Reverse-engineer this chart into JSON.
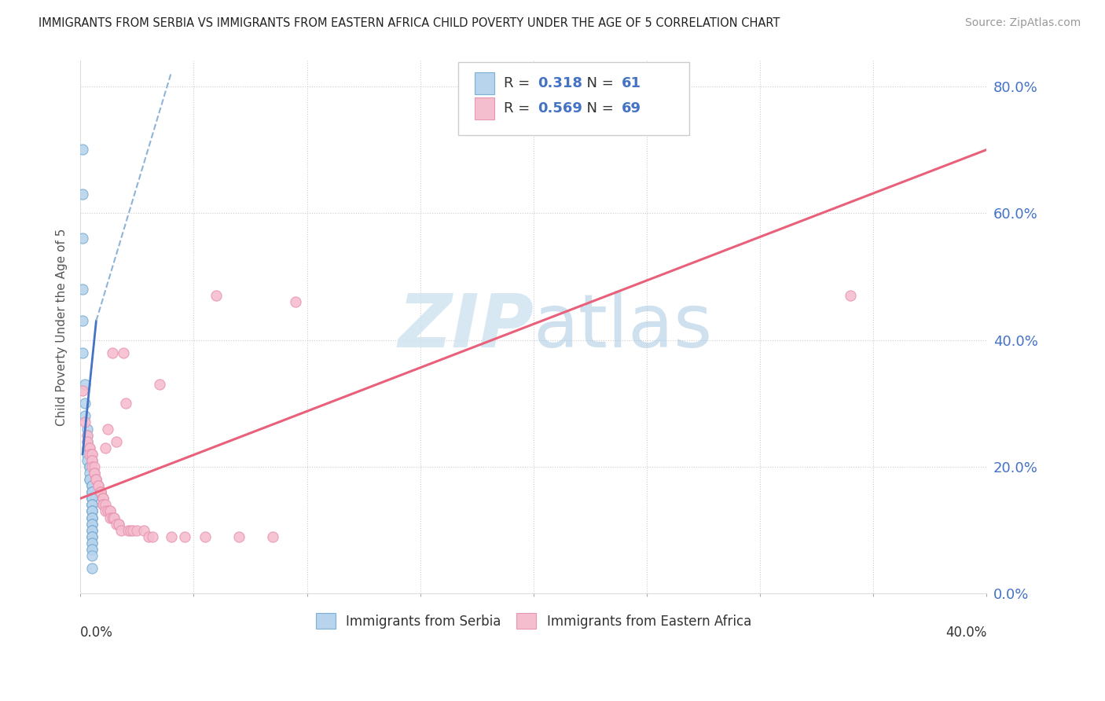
{
  "title": "IMMIGRANTS FROM SERBIA VS IMMIGRANTS FROM EASTERN AFRICA CHILD POVERTY UNDER THE AGE OF 5 CORRELATION CHART",
  "source": "Source: ZipAtlas.com",
  "ylabel": "Child Poverty Under the Age of 5",
  "serbia_R": "0.318",
  "serbia_N": "61",
  "africa_R": "0.569",
  "africa_N": "69",
  "serbia_color": "#b8d4ed",
  "africa_color": "#f5bece",
  "serbia_dot_edge": "#7bafd4",
  "africa_dot_edge": "#e896b4",
  "serbia_line_color": "#4472c4",
  "africa_line_color": "#e8607a",
  "watermark_color": "#d0e4f0",
  "serbia_scatter": [
    [
      0.001,
      0.7
    ],
    [
      0.001,
      0.63
    ],
    [
      0.001,
      0.56
    ],
    [
      0.001,
      0.48
    ],
    [
      0.001,
      0.43
    ],
    [
      0.001,
      0.38
    ],
    [
      0.002,
      0.33
    ],
    [
      0.002,
      0.3
    ],
    [
      0.002,
      0.28
    ],
    [
      0.003,
      0.26
    ],
    [
      0.003,
      0.25
    ],
    [
      0.003,
      0.24
    ],
    [
      0.003,
      0.23
    ],
    [
      0.003,
      0.22
    ],
    [
      0.003,
      0.21
    ],
    [
      0.004,
      0.2
    ],
    [
      0.004,
      0.2
    ],
    [
      0.004,
      0.2
    ],
    [
      0.004,
      0.19
    ],
    [
      0.004,
      0.18
    ],
    [
      0.004,
      0.18
    ],
    [
      0.005,
      0.17
    ],
    [
      0.005,
      0.17
    ],
    [
      0.005,
      0.17
    ],
    [
      0.005,
      0.16
    ],
    [
      0.005,
      0.16
    ],
    [
      0.005,
      0.16
    ],
    [
      0.005,
      0.16
    ],
    [
      0.005,
      0.15
    ],
    [
      0.005,
      0.15
    ],
    [
      0.005,
      0.15
    ],
    [
      0.005,
      0.15
    ],
    [
      0.005,
      0.14
    ],
    [
      0.005,
      0.14
    ],
    [
      0.005,
      0.14
    ],
    [
      0.005,
      0.14
    ],
    [
      0.005,
      0.14
    ],
    [
      0.005,
      0.13
    ],
    [
      0.005,
      0.13
    ],
    [
      0.005,
      0.13
    ],
    [
      0.005,
      0.13
    ],
    [
      0.005,
      0.13
    ],
    [
      0.005,
      0.12
    ],
    [
      0.005,
      0.12
    ],
    [
      0.005,
      0.12
    ],
    [
      0.005,
      0.12
    ],
    [
      0.005,
      0.11
    ],
    [
      0.005,
      0.11
    ],
    [
      0.005,
      0.11
    ],
    [
      0.005,
      0.1
    ],
    [
      0.005,
      0.1
    ],
    [
      0.005,
      0.1
    ],
    [
      0.005,
      0.09
    ],
    [
      0.005,
      0.09
    ],
    [
      0.005,
      0.09
    ],
    [
      0.005,
      0.08
    ],
    [
      0.005,
      0.08
    ],
    [
      0.005,
      0.07
    ],
    [
      0.005,
      0.07
    ],
    [
      0.005,
      0.06
    ],
    [
      0.005,
      0.04
    ]
  ],
  "africa_scatter": [
    [
      0.001,
      0.32
    ],
    [
      0.002,
      0.27
    ],
    [
      0.003,
      0.25
    ],
    [
      0.003,
      0.24
    ],
    [
      0.004,
      0.23
    ],
    [
      0.004,
      0.23
    ],
    [
      0.004,
      0.22
    ],
    [
      0.005,
      0.22
    ],
    [
      0.005,
      0.22
    ],
    [
      0.005,
      0.21
    ],
    [
      0.005,
      0.21
    ],
    [
      0.005,
      0.21
    ],
    [
      0.005,
      0.2
    ],
    [
      0.006,
      0.2
    ],
    [
      0.006,
      0.19
    ],
    [
      0.006,
      0.19
    ],
    [
      0.006,
      0.19
    ],
    [
      0.007,
      0.18
    ],
    [
      0.007,
      0.18
    ],
    [
      0.007,
      0.18
    ],
    [
      0.007,
      0.18
    ],
    [
      0.008,
      0.17
    ],
    [
      0.008,
      0.17
    ],
    [
      0.008,
      0.17
    ],
    [
      0.009,
      0.16
    ],
    [
      0.009,
      0.16
    ],
    [
      0.009,
      0.16
    ],
    [
      0.009,
      0.16
    ],
    [
      0.01,
      0.15
    ],
    [
      0.01,
      0.15
    ],
    [
      0.01,
      0.15
    ],
    [
      0.01,
      0.14
    ],
    [
      0.01,
      0.14
    ],
    [
      0.01,
      0.14
    ],
    [
      0.011,
      0.23
    ],
    [
      0.011,
      0.14
    ],
    [
      0.011,
      0.13
    ],
    [
      0.012,
      0.13
    ],
    [
      0.012,
      0.26
    ],
    [
      0.013,
      0.13
    ],
    [
      0.013,
      0.13
    ],
    [
      0.013,
      0.12
    ],
    [
      0.014,
      0.38
    ],
    [
      0.014,
      0.12
    ],
    [
      0.015,
      0.12
    ],
    [
      0.015,
      0.12
    ],
    [
      0.016,
      0.11
    ],
    [
      0.016,
      0.24
    ],
    [
      0.017,
      0.11
    ],
    [
      0.017,
      0.11
    ],
    [
      0.018,
      0.1
    ],
    [
      0.019,
      0.38
    ],
    [
      0.02,
      0.3
    ],
    [
      0.021,
      0.1
    ],
    [
      0.022,
      0.1
    ],
    [
      0.023,
      0.1
    ],
    [
      0.025,
      0.1
    ],
    [
      0.028,
      0.1
    ],
    [
      0.03,
      0.09
    ],
    [
      0.032,
      0.09
    ],
    [
      0.035,
      0.33
    ],
    [
      0.04,
      0.09
    ],
    [
      0.046,
      0.09
    ],
    [
      0.055,
      0.09
    ],
    [
      0.06,
      0.47
    ],
    [
      0.07,
      0.09
    ],
    [
      0.085,
      0.09
    ],
    [
      0.095,
      0.46
    ],
    [
      0.34,
      0.47
    ]
  ],
  "xlim": [
    0.0,
    0.4
  ],
  "ylim": [
    0.0,
    0.84
  ],
  "yticks": [
    0.0,
    0.2,
    0.4,
    0.6,
    0.8
  ],
  "serbia_trendline_solid": [
    [
      0.001,
      0.22
    ],
    [
      0.007,
      0.43
    ]
  ],
  "serbia_trendline_dashed": [
    [
      0.007,
      0.43
    ],
    [
      0.04,
      0.82
    ]
  ],
  "africa_trendline": [
    [
      0.0,
      0.15
    ],
    [
      0.4,
      0.7
    ]
  ]
}
